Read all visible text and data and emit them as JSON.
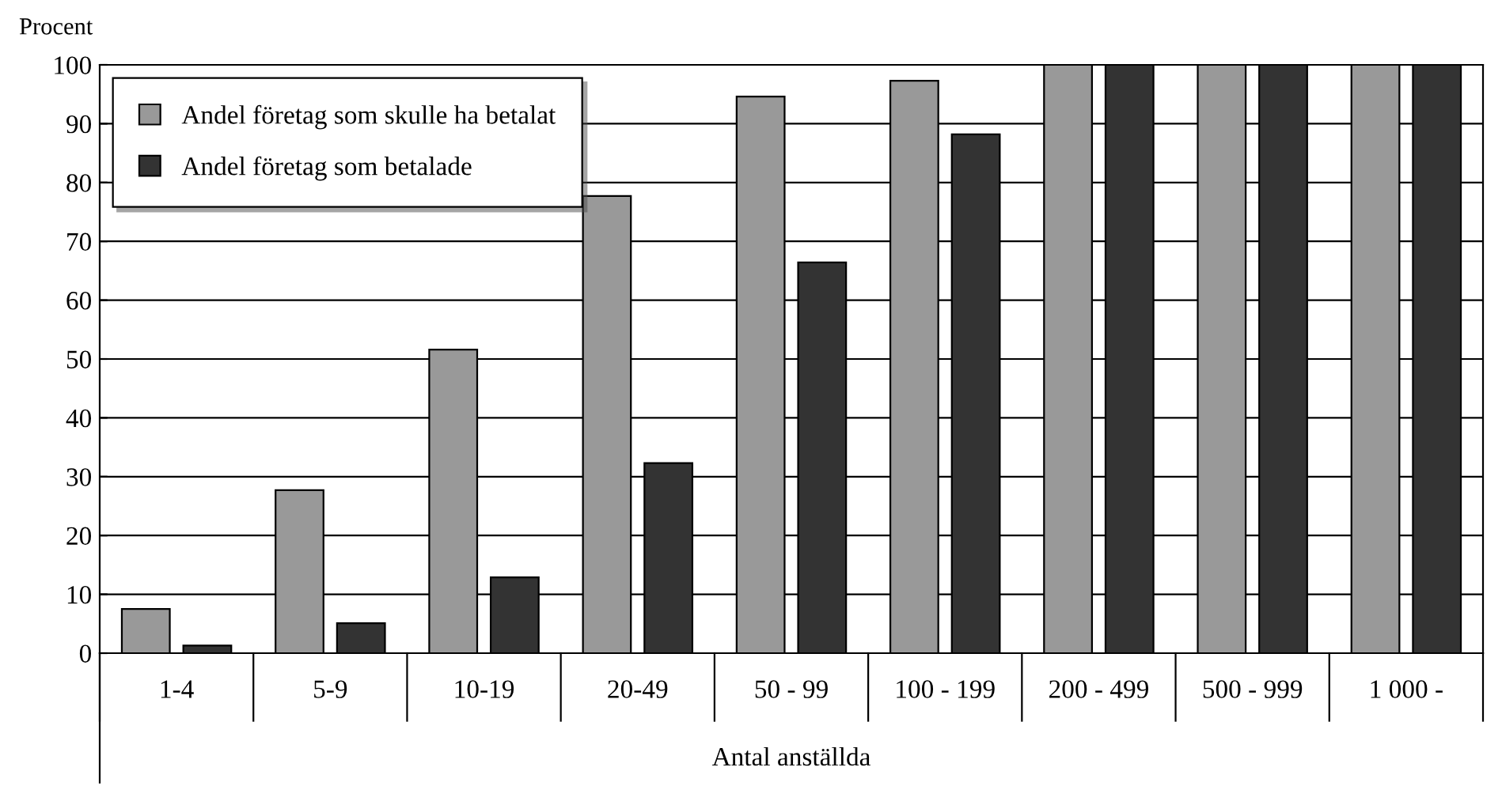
{
  "chart_data": {
    "type": "bar",
    "ylabel": "Procent",
    "xlabel": "Antal anställda",
    "categories": [
      "1-4",
      "5-9",
      "10-19",
      "20-49",
      "50 - 99",
      "100 - 199",
      "200 - 499",
      "500 - 999",
      "1 000 -"
    ],
    "series": [
      {
        "name": "Andel företag som skulle ha betalat",
        "color": "#999999",
        "values": [
          7.5,
          27.7,
          51.6,
          77.7,
          94.6,
          97.3,
          100,
          100,
          100
        ]
      },
      {
        "name": "Andel företag som betalade",
        "color": "#333333",
        "values": [
          1.3,
          5.1,
          12.9,
          32.3,
          66.4,
          88.2,
          100,
          100,
          100
        ]
      }
    ],
    "ylim": [
      0,
      100
    ],
    "yticks": [
      0,
      10,
      20,
      30,
      40,
      50,
      60,
      70,
      80,
      90,
      100
    ],
    "grid": "y",
    "legend": "top left"
  }
}
